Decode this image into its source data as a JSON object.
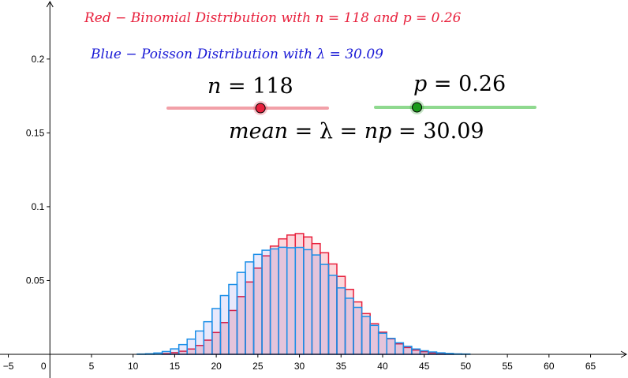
{
  "labels": {
    "red_title": "Red − Binomial Distribution with n = 118 and p = 0.26",
    "blue_title": "Blue − Poisson Distribution with λ = 30.09",
    "n_var": "n",
    "n_eq": " = 118",
    "p_var": "p",
    "p_eq": " = 0.26",
    "mean_var": "mean",
    "mean_eq": " = λ = ",
    "np_var": "np",
    "mean_val": " = 30.09"
  },
  "sliders": {
    "n": {
      "value": 118,
      "fraction": 0.58,
      "color": "#e8203c",
      "track_color": "#f2a0a8"
    },
    "p": {
      "value": 0.26,
      "fraction": 0.26,
      "color": "#1a9a1a",
      "track_color": "#8fd98f"
    }
  },
  "chart_data": {
    "type": "bar",
    "xlim": [
      -6,
      69.5
    ],
    "ylim": [
      0,
      0.24
    ],
    "x_ticks": [
      -5,
      0,
      5,
      10,
      15,
      20,
      25,
      30,
      35,
      40,
      45,
      50,
      55,
      60,
      65
    ],
    "y_ticks": [
      0.05,
      0.1,
      0.15,
      0.2
    ],
    "x_tick_labels": [
      "−5",
      "0",
      "5",
      "10",
      "15",
      "20",
      "25",
      "30",
      "35",
      "40",
      "45",
      "50",
      "55",
      "60",
      "65"
    ],
    "y_tick_labels": [
      "0.05",
      "0.1",
      "0.15",
      "0.2"
    ],
    "grid": false,
    "series": [
      {
        "name": "Binomial Distribution",
        "color": "#e8203c",
        "fill": "rgba(232,32,60,0.18)",
        "x": [
          14,
          15,
          16,
          17,
          18,
          19,
          20,
          21,
          22,
          23,
          24,
          25,
          26,
          27,
          28,
          29,
          30,
          31,
          32,
          33,
          34,
          35,
          36,
          37,
          38,
          39,
          40,
          41,
          42,
          43,
          44,
          45,
          46,
          47,
          48
        ],
        "values": [
          0.0005,
          0.0011,
          0.0021,
          0.0036,
          0.006,
          0.0096,
          0.0148,
          0.0215,
          0.0297,
          0.0391,
          0.049,
          0.0584,
          0.0667,
          0.0733,
          0.0782,
          0.0808,
          0.0818,
          0.0795,
          0.075,
          0.0688,
          0.0612,
          0.0528,
          0.044,
          0.0355,
          0.0276,
          0.0207,
          0.015,
          0.0105,
          0.0071,
          0.0046,
          0.0029,
          0.0018,
          0.001,
          0.0006,
          0.0003
        ]
      },
      {
        "name": "Poisson Distribution",
        "color": "#1a8fe8",
        "fill": "rgba(26,26,214,0.10)",
        "x": [
          11,
          12,
          13,
          14,
          15,
          16,
          17,
          18,
          19,
          20,
          21,
          22,
          23,
          24,
          25,
          26,
          27,
          28,
          29,
          30,
          31,
          32,
          33,
          34,
          35,
          36,
          37,
          38,
          39,
          40,
          41,
          42,
          43,
          44,
          45,
          46,
          47,
          48,
          49,
          50
        ],
        "values": [
          0.0002,
          0.0004,
          0.0009,
          0.0019,
          0.0037,
          0.0066,
          0.0103,
          0.0158,
          0.0221,
          0.031,
          0.0398,
          0.0473,
          0.0555,
          0.0626,
          0.0677,
          0.0705,
          0.0714,
          0.0725,
          0.0722,
          0.0724,
          0.0709,
          0.0673,
          0.0609,
          0.0535,
          0.045,
          0.038,
          0.0318,
          0.0256,
          0.0196,
          0.0143,
          0.0108,
          0.0078,
          0.0054,
          0.0036,
          0.0024,
          0.0016,
          0.001,
          0.0006,
          0.0003,
          0.0002
        ]
      }
    ]
  }
}
